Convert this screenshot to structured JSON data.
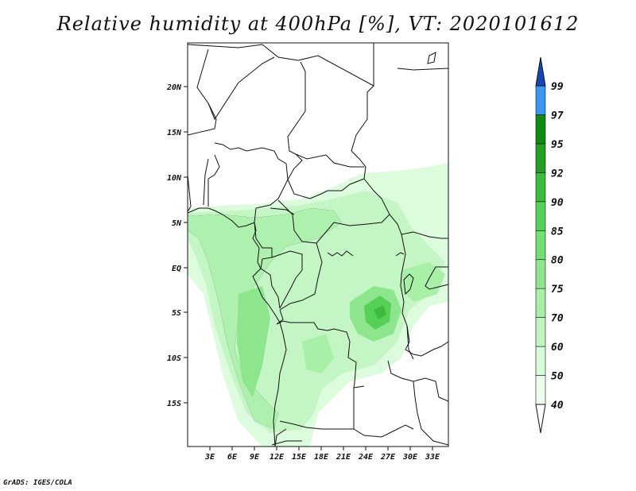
{
  "map": {
    "title": "Relative humidity at 400hPa [%], VT: 2020101612",
    "credit": "GrADS: IGES/COLA",
    "lat_labels": [
      "20N",
      "15N",
      "10N",
      "5N",
      "EQ",
      "5S",
      "10S",
      "15S"
    ],
    "lon_labels": [
      "3E",
      "6E",
      "9E",
      "12E",
      "15E",
      "18E",
      "21E",
      "24E",
      "27E",
      "30E",
      "33E"
    ],
    "colorbar": {
      "levels": [
        "40",
        "50",
        "60",
        "70",
        "75",
        "80",
        "85",
        "90",
        "92",
        "95",
        "97",
        "99"
      ],
      "colors": [
        "#f0fff0",
        "#d8fbd8",
        "#c0f5c0",
        "#a8f0a8",
        "#8de68d",
        "#74e074",
        "#56d056",
        "#3cbc3c",
        "#249f24",
        "#108a10",
        "#3c96f0",
        "#1e6ed2",
        "#1446b4"
      ],
      "top_color": "#1446b4",
      "bottom_color": "#ffffff"
    }
  }
}
